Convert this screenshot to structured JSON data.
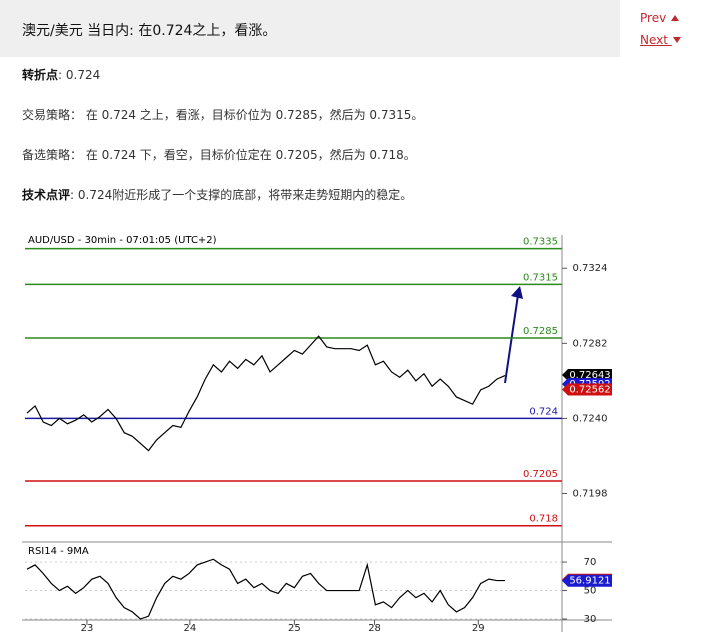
{
  "header": {
    "title": "澳元/美元 当日内: 在0.724之上，看涨。"
  },
  "nav": {
    "prev": "Prev",
    "next": "Next"
  },
  "paragraphs": [
    {
      "label": "转折点",
      "text": ": 0.724"
    },
    {
      "text": "交易策略： 在 0.724 之上，看涨，目标价位为 0.7285，然后为 0.7315。"
    },
    {
      "text": "备选策略： 在 0.724 下，看空，目标价位定在 0.7205，然后为 0.718。"
    },
    {
      "label": "技术点评",
      "text": ": 0.724附近形成了一个支撑的底部，将带来走势短期内的稳定。"
    }
  ],
  "chart_data": [
    {
      "type": "line",
      "title": "AUD/USD - 30min - 07:01:05 (UTC+2)",
      "color": "#000000",
      "values": [
        0.7243,
        0.7247,
        0.7238,
        0.7236,
        0.724,
        0.7237,
        0.7239,
        0.7242,
        0.7238,
        0.7241,
        0.7245,
        0.724,
        0.7232,
        0.723,
        0.7226,
        0.7222,
        0.7228,
        0.7232,
        0.7236,
        0.7235,
        0.7244,
        0.7252,
        0.7262,
        0.727,
        0.7266,
        0.7272,
        0.7268,
        0.7273,
        0.727,
        0.7275,
        0.7266,
        0.727,
        0.7274,
        0.7278,
        0.7276,
        0.7281,
        0.7286,
        0.728,
        0.7279,
        0.7279,
        0.7279,
        0.7278,
        0.7281,
        0.727,
        0.7272,
        0.7266,
        0.7263,
        0.7267,
        0.7261,
        0.7265,
        0.7258,
        0.7262,
        0.7258,
        0.7252,
        0.725,
        0.7248,
        0.7256,
        0.7258,
        0.7262,
        0.7264
      ],
      "xlim": [
        0,
        59
      ],
      "xticks": [
        {
          "value": 7.4,
          "label": "23"
        },
        {
          "value": 20.1,
          "label": "24"
        },
        {
          "value": 33,
          "label": "25"
        },
        {
          "value": 42.9,
          "label": "28"
        },
        {
          "value": 55.7,
          "label": "29"
        }
      ],
      "ylim": [
        0.7172,
        0.7337
      ],
      "yticks": [
        0.7198,
        {
          "value": 0.724,
          "label": "0.7240"
        },
        0.7282,
        0.7324
      ],
      "levels": [
        {
          "value": 0.7335,
          "color": "#2a8a1a"
        },
        {
          "value": 0.7315,
          "color": "#2a8a1a"
        },
        {
          "value": 0.7285,
          "color": "#2a8a1a"
        },
        {
          "value": 0.724,
          "color": "#1a1aa0"
        },
        {
          "value": 0.7205,
          "color": "#d01010"
        },
        {
          "value": 0.718,
          "color": "#d01010"
        }
      ],
      "price_tags": [
        {
          "value": 0.72643,
          "color": "#000000"
        },
        {
          "value": 0.72592,
          "color": "#1a1ad0"
        },
        {
          "value": 0.72562,
          "color": "#d01010"
        }
      ]
    },
    {
      "type": "line",
      "title": "RSI14 - 9MA",
      "color": "#000000",
      "values": [
        65,
        68,
        62,
        55,
        50,
        53,
        48,
        52,
        58,
        60,
        55,
        45,
        38,
        35,
        30,
        32,
        45,
        55,
        60,
        58,
        62,
        68,
        70,
        72,
        68,
        65,
        55,
        58,
        52,
        55,
        50,
        48,
        55,
        52,
        60,
        62,
        55,
        50,
        50,
        50,
        50,
        50,
        68,
        40,
        42,
        38,
        45,
        50,
        45,
        48,
        42,
        50,
        40,
        35,
        38,
        45,
        55,
        58,
        57,
        57
      ],
      "xlim": [
        0,
        59
      ],
      "ylim": [
        29.3,
        82
      ],
      "yticks": [
        30,
        50,
        70
      ],
      "price_tags": [
        {
          "value": 57.5663,
          "color": "#d01010"
        },
        {
          "value": 56.9121,
          "color": "#1a1ad0"
        }
      ]
    }
  ]
}
